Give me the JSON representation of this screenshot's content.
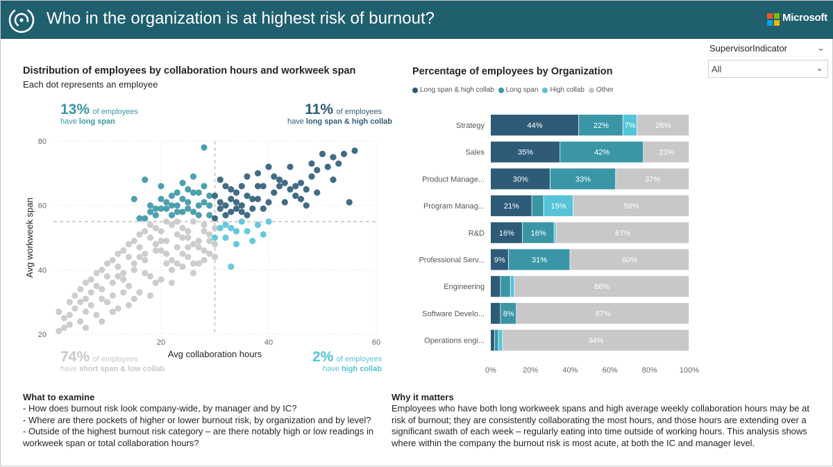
{
  "header": {
    "title": "Who in the organization is at highest risk of burnout?",
    "brand": "Microsoft"
  },
  "colors": {
    "header_bg": "#1f5f6e",
    "long_span_high_collab": "#2e5b78",
    "long_span": "#3a96a6",
    "high_collab": "#56c3d9",
    "other": "#c8c8c8"
  },
  "slicer": {
    "title": "SupervisorIndicator",
    "value": "All"
  },
  "scatter": {
    "title": "Distribution of employees by collaboration hours and workweek span",
    "subtitle": "Each dot represents an employee",
    "kpis": {
      "top_left": {
        "value": "13%",
        "text": "of employees",
        "line2_prefix": "have",
        "line2_bold": "long span"
      },
      "top_right": {
        "value": "11%",
        "text": "of employees",
        "line2_prefix": "have",
        "line2_bold": "long span & high collab"
      },
      "bottom_left": {
        "value": "74%",
        "text": "of employees",
        "line2_prefix": "have",
        "line2_bold": "short span & low collab"
      },
      "bottom_right": {
        "value": "2%",
        "text": "of employees",
        "line2_prefix": "have",
        "line2_bold": "high collab"
      }
    }
  },
  "chart_data": [
    {
      "type": "scatter",
      "title": "Distribution of employees by collaboration hours and workweek span",
      "subtitle": "Each dot represents an employee",
      "xlabel": "Avg collaboration hours",
      "ylabel": "Avg workweek span",
      "xlim": [
        0,
        60
      ],
      "ylim": [
        20,
        80
      ],
      "xticks": [
        20,
        40,
        60
      ],
      "yticks": [
        20,
        40,
        60,
        80
      ],
      "thresholds": {
        "x": 30,
        "y": 55
      },
      "grid": true,
      "series": [
        {
          "category": "long_span_high_collab",
          "points": [
            [
              30,
              63
            ],
            [
              31,
              61
            ],
            [
              32,
              66
            ],
            [
              33,
              58
            ],
            [
              34,
              64
            ],
            [
              35,
              60
            ],
            [
              36,
              69
            ],
            [
              37,
              62
            ],
            [
              38,
              66
            ],
            [
              39,
              59
            ],
            [
              40,
              72
            ],
            [
              41,
              64
            ],
            [
              42,
              68
            ],
            [
              43,
              61
            ],
            [
              44,
              65
            ],
            [
              45,
              63
            ],
            [
              46,
              67
            ],
            [
              47,
              60
            ],
            [
              48,
              69
            ],
            [
              49,
              64
            ],
            [
              50,
              76
            ],
            [
              51,
              72
            ],
            [
              52,
              68
            ],
            [
              53,
              73
            ],
            [
              54,
              76
            ],
            [
              56,
              77
            ],
            [
              55,
              61
            ],
            [
              44,
              72
            ],
            [
              38,
              70
            ],
            [
              35,
              66
            ],
            [
              33,
              62
            ],
            [
              31,
              68
            ],
            [
              30,
              56
            ],
            [
              32,
              57
            ],
            [
              34,
              59
            ],
            [
              36,
              57
            ],
            [
              40,
              61
            ],
            [
              42,
              66
            ],
            [
              46,
              62
            ],
            [
              48,
              73
            ],
            [
              52,
              75
            ],
            [
              36,
              63
            ],
            [
              39,
              66
            ],
            [
              43,
              67
            ],
            [
              37,
              59
            ],
            [
              41,
              69
            ],
            [
              45,
              66
            ],
            [
              31,
              59
            ],
            [
              33,
              65
            ],
            [
              34,
              61
            ],
            [
              35,
              58
            ],
            [
              38,
              62
            ],
            [
              47,
              65
            ],
            [
              49,
              71
            ],
            [
              32,
              60
            ]
          ]
        },
        {
          "category": "long_span",
          "points": [
            [
              15,
              62
            ],
            [
              16,
              56
            ],
            [
              17,
              68
            ],
            [
              18,
              60
            ],
            [
              19,
              57
            ],
            [
              20,
              66
            ],
            [
              21,
              59
            ],
            [
              22,
              63
            ],
            [
              23,
              58
            ],
            [
              24,
              67
            ],
            [
              25,
              61
            ],
            [
              26,
              69
            ],
            [
              27,
              64
            ],
            [
              28,
              78
            ],
            [
              29,
              60
            ],
            [
              18,
              58
            ],
            [
              20,
              59
            ],
            [
              22,
              57
            ],
            [
              24,
              62
            ],
            [
              26,
              58
            ],
            [
              28,
              66
            ],
            [
              29,
              57
            ],
            [
              21,
              61
            ],
            [
              23,
              64
            ],
            [
              25,
              59
            ],
            [
              27,
              60
            ],
            [
              19,
              59
            ],
            [
              17,
              56
            ],
            [
              26,
              64
            ],
            [
              28,
              61
            ],
            [
              29,
              63
            ],
            [
              22,
              60
            ],
            [
              24,
              58
            ],
            [
              20,
              62
            ],
            [
              27,
              57
            ],
            [
              25,
              65
            ],
            [
              23,
              60
            ]
          ]
        },
        {
          "category": "high_collab",
          "points": [
            [
              31,
              53
            ],
            [
              32,
              50
            ],
            [
              33,
              41
            ],
            [
              34,
              48
            ],
            [
              35,
              55
            ],
            [
              36,
              52
            ],
            [
              37,
              49
            ],
            [
              38,
              54
            ],
            [
              39,
              51
            ],
            [
              40,
              55
            ],
            [
              32,
              54
            ],
            [
              34,
              52
            ],
            [
              30,
              50
            ],
            [
              33,
              53
            ]
          ]
        },
        {
          "category": "other",
          "points": [
            [
              1,
              21
            ],
            [
              2,
              25
            ],
            [
              3,
              23
            ],
            [
              4,
              28
            ],
            [
              5,
              30
            ],
            [
              6,
              27
            ],
            [
              7,
              33
            ],
            [
              8,
              35
            ],
            [
              9,
              31
            ],
            [
              10,
              38
            ],
            [
              11,
              36
            ],
            [
              12,
              41
            ],
            [
              13,
              39
            ],
            [
              14,
              44
            ],
            [
              15,
              42
            ],
            [
              16,
              47
            ],
            [
              17,
              45
            ],
            [
              18,
              50
            ],
            [
              19,
              48
            ],
            [
              20,
              52
            ],
            [
              21,
              49
            ],
            [
              22,
              54
            ],
            [
              23,
              51
            ],
            [
              24,
              53
            ],
            [
              25,
              50
            ],
            [
              26,
              55
            ],
            [
              27,
              47
            ],
            [
              28,
              52
            ],
            [
              29,
              49
            ],
            [
              30,
              53
            ],
            [
              3,
              26
            ],
            [
              5,
              24
            ],
            [
              7,
              29
            ],
            [
              9,
              34
            ],
            [
              11,
              32
            ],
            [
              13,
              37
            ],
            [
              15,
              40
            ],
            [
              17,
              43
            ],
            [
              19,
              46
            ],
            [
              21,
              45
            ],
            [
              23,
              47
            ],
            [
              25,
              44
            ],
            [
              27,
              42
            ],
            [
              29,
              45
            ],
            [
              4,
              32
            ],
            [
              6,
              36
            ],
            [
              8,
              39
            ],
            [
              10,
              42
            ],
            [
              12,
              45
            ],
            [
              14,
              48
            ],
            [
              16,
              51
            ],
            [
              18,
              54
            ],
            [
              20,
              46
            ],
            [
              22,
              43
            ],
            [
              24,
              41
            ],
            [
              26,
              39
            ],
            [
              28,
              46
            ],
            [
              2,
              22
            ],
            [
              6,
              22
            ],
            [
              10,
              30
            ],
            [
              14,
              35
            ],
            [
              18,
              38
            ],
            [
              22,
              40
            ],
            [
              26,
              48
            ],
            [
              30,
              44
            ],
            [
              8,
              26
            ],
            [
              12,
              28
            ],
            [
              16,
              33
            ],
            [
              20,
              37
            ],
            [
              24,
              45
            ],
            [
              28,
              43
            ],
            [
              5,
              34
            ],
            [
              9,
              40
            ],
            [
              13,
              46
            ],
            [
              17,
              52
            ],
            [
              21,
              55
            ],
            [
              25,
              52
            ],
            [
              29,
              51
            ],
            [
              11,
              27
            ],
            [
              15,
              31
            ],
            [
              19,
              36
            ],
            [
              23,
              42
            ],
            [
              27,
              49
            ],
            [
              3,
              30
            ],
            [
              7,
              37
            ],
            [
              11,
              43
            ],
            [
              15,
              49
            ],
            [
              19,
              53
            ],
            [
              23,
              55
            ],
            [
              1,
              27
            ],
            [
              6,
              31
            ],
            [
              14,
              29
            ],
            [
              18,
              32
            ],
            [
              22,
              36
            ],
            [
              26,
              42
            ],
            [
              30,
              48
            ],
            [
              9,
              24
            ],
            [
              13,
              33
            ],
            [
              17,
              39
            ],
            [
              21,
              42
            ],
            [
              25,
              47
            ],
            [
              12,
              38
            ],
            [
              16,
              44
            ],
            [
              20,
              49
            ],
            [
              24,
              50
            ],
            [
              28,
              54
            ]
          ]
        }
      ]
    },
    {
      "type": "bar",
      "orientation": "horizontal",
      "stacked": "100%",
      "title": "Percentage of employees by Organization",
      "categories": [
        "Strategy",
        "Sales",
        "Product Manage...",
        "Program Manag...",
        "R&D",
        "Professional Serv...",
        "Engineering",
        "Software Develo...",
        "Operations engi..."
      ],
      "xticks": [
        "0%",
        "20%",
        "40%",
        "60%",
        "80%",
        "100%"
      ],
      "legend_position": "top-left",
      "series": [
        {
          "name": "Long span & high collab",
          "values": [
            44,
            35,
            30,
            21,
            16,
            9,
            5,
            5,
            2
          ]
        },
        {
          "name": "Long span",
          "values": [
            22,
            42,
            33,
            6,
            16,
            31,
            5,
            8,
            2
          ]
        },
        {
          "name": "High collab",
          "values": [
            7,
            0,
            0,
            15,
            1,
            0,
            2,
            0,
            2
          ]
        },
        {
          "name": "Other",
          "values": [
            26,
            23,
            37,
            59,
            67,
            60,
            88,
            87,
            94
          ]
        }
      ],
      "labels": [
        [
          "44%",
          "22%",
          "7%",
          "26%"
        ],
        [
          "35%",
          "42%",
          "",
          "23%"
        ],
        [
          "30%",
          "33%",
          "",
          "37%"
        ],
        [
          "21%",
          "",
          "15%",
          "59%"
        ],
        [
          "16%",
          "16%",
          "",
          "67%"
        ],
        [
          "9%",
          "31%",
          "",
          "60%"
        ],
        [
          "",
          "",
          "",
          "88%"
        ],
        [
          "",
          "8%",
          "",
          "87%"
        ],
        [
          "",
          "",
          "",
          "94%"
        ]
      ]
    }
  ],
  "examine": {
    "title": "What to examine",
    "items": [
      "- How does burnout risk look company-wide, by manager and by IC?",
      "- Where are there pockets of higher or lower burnout risk, by organization and by level?",
      "- Outside of the highest burnout risk category – are there notably high or low readings in workweek span or total collaboration hours?"
    ]
  },
  "why": {
    "title": "Why it matters",
    "text": "Employees who have both long workweek spans and high average weekly collaboration hours may be at risk of burnout; they are consistently collaborating the most hours, and those hours are extending over a significant swath of each week – regularly eating into time outside of working hours. This analysis shows where within the company the burnout risk is most acute, at both the IC and manager level."
  }
}
